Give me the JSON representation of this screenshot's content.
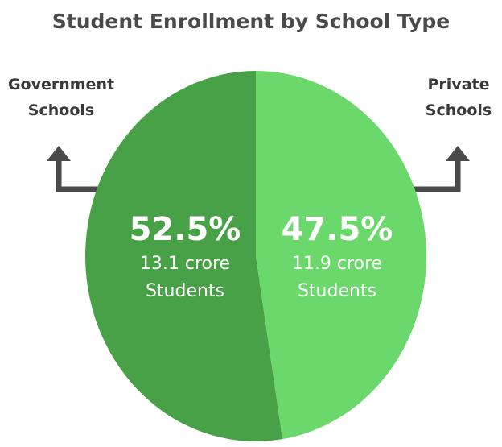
{
  "chart_data": {
    "type": "pie",
    "title": "Student Enrollment by School Type",
    "slices": [
      {
        "name": "Government Schools",
        "name_lines": [
          "Government",
          "Schools"
        ],
        "percent": 52.5,
        "percent_label": "52.5%",
        "count_label": "13.1 crore",
        "unit_label": "Students",
        "color": "#49a147"
      },
      {
        "name": "Private Schools",
        "name_lines": [
          "Private",
          "Schools"
        ],
        "percent": 47.5,
        "percent_label": "47.5%",
        "count_label": "11.9 crore",
        "unit_label": "Students",
        "color": "#6ad86a"
      }
    ],
    "connector_color": "#4a4a4a"
  }
}
